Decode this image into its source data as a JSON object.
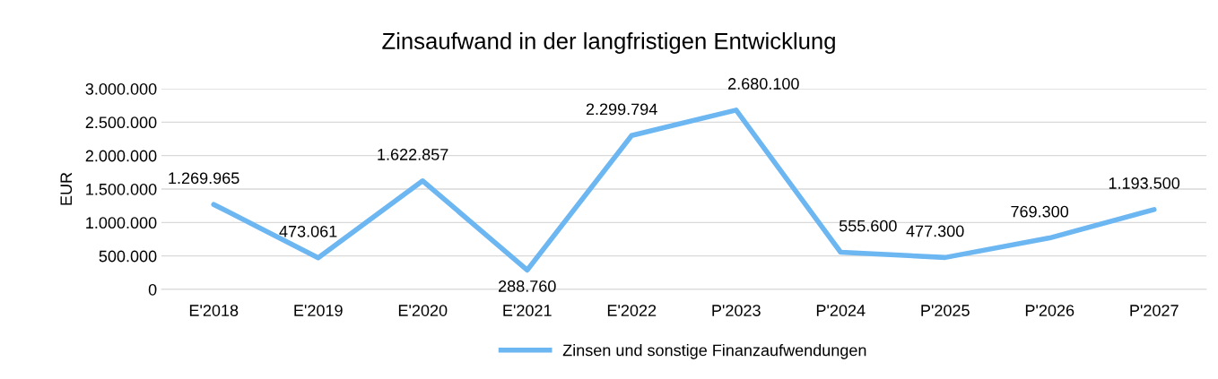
{
  "chart_data": {
    "type": "line",
    "title": "Zinsaufwand in der langfristigen Entwicklung",
    "ylabel": "EUR",
    "categories": [
      "E'2018",
      "E'2019",
      "E'2020",
      "E'2021",
      "E'2022",
      "P'2023",
      "P'2024",
      "P'2025",
      "P'2026",
      "P'2027"
    ],
    "series": [
      {
        "name": "Zinsen und sonstige Finanzaufwendungen",
        "color": "#6cb6f2",
        "values": [
          1269965,
          473061,
          1622857,
          288760,
          2299794,
          2680100,
          555600,
          477300,
          769300,
          1193500
        ],
        "value_labels": [
          "1.269.965",
          "473.061",
          "1.622.857",
          "288.760",
          "2.299.794",
          "2.680.100",
          "555.600",
          "477.300",
          "769.300",
          "1.193.500"
        ]
      }
    ],
    "ylim": [
      0,
      3000000
    ],
    "yticks": [
      {
        "value": 0,
        "label": "0"
      },
      {
        "value": 500000,
        "label": "500.000"
      },
      {
        "value": 1000000,
        "label": "1.000.000"
      },
      {
        "value": 1500000,
        "label": "1.500.000"
      },
      {
        "value": 2000000,
        "label": "2.000.000"
      },
      {
        "value": 2500000,
        "label": "2.500.000"
      },
      {
        "value": 3000000,
        "label": "3.000.000"
      }
    ],
    "grid": "y",
    "legend": "bottom",
    "marker": "none",
    "line_style": "solid"
  }
}
